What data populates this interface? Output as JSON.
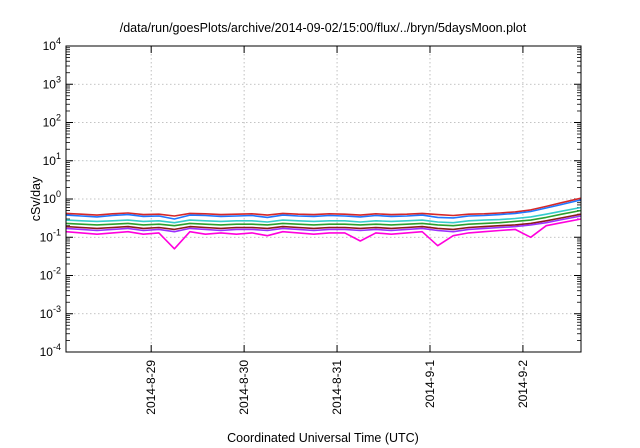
{
  "chart_data": {
    "type": "line",
    "title": "/data/run/goesPlots/archive/2014-09-02/15:00/flux/../bryn/5daysMoon.plot",
    "xlabel": "Coordinated Universal Time (UTC)",
    "ylabel": "cSv/day",
    "yscale": "log",
    "ylim": [
      0.0001,
      10000
    ],
    "xlim": [
      "2014-08-28 02:00",
      "2014-09-02 15:00"
    ],
    "grid": true,
    "y_ticks": [
      {
        "base": "10",
        "exp": "-4",
        "value": 0.0001
      },
      {
        "base": "10",
        "exp": "-3",
        "value": 0.001
      },
      {
        "base": "10",
        "exp": "-2",
        "value": 0.01
      },
      {
        "base": "10",
        "exp": "-1",
        "value": 0.1
      },
      {
        "base": "10",
        "exp": "0",
        "value": 1
      },
      {
        "base": "10",
        "exp": "1",
        "value": 10
      },
      {
        "base": "10",
        "exp": "2",
        "value": 100
      },
      {
        "base": "10",
        "exp": "3",
        "value": 1000
      },
      {
        "base": "10",
        "exp": "4",
        "value": 10000
      }
    ],
    "x_ticks": [
      {
        "label": "2014-8-29",
        "value": "2014-08-29 00:00"
      },
      {
        "label": "2014-8-30",
        "value": "2014-08-30 00:00"
      },
      {
        "label": "2014-8-31",
        "value": "2014-08-31 00:00"
      },
      {
        "label": "2014-9-1",
        "value": "2014-09-01 00:00"
      },
      {
        "label": "2014-9-2",
        "value": "2014-09-02 00:00"
      }
    ],
    "x": [
      "2014-08-28 02:00",
      "2014-08-28 06:00",
      "2014-08-28 10:00",
      "2014-08-28 14:00",
      "2014-08-28 18:00",
      "2014-08-28 22:00",
      "2014-08-29 02:00",
      "2014-08-29 06:00",
      "2014-08-29 10:00",
      "2014-08-29 14:00",
      "2014-08-29 18:00",
      "2014-08-29 22:00",
      "2014-08-30 02:00",
      "2014-08-30 06:00",
      "2014-08-30 10:00",
      "2014-08-30 14:00",
      "2014-08-30 18:00",
      "2014-08-30 22:00",
      "2014-08-31 02:00",
      "2014-08-31 06:00",
      "2014-08-31 10:00",
      "2014-08-31 14:00",
      "2014-08-31 18:00",
      "2014-08-31 22:00",
      "2014-09-01 02:00",
      "2014-09-01 06:00",
      "2014-09-01 10:00",
      "2014-09-01 14:00",
      "2014-09-01 18:00",
      "2014-09-01 22:00",
      "2014-09-02 02:00",
      "2014-09-02 06:00",
      "2014-09-02 10:00",
      "2014-09-02 15:00"
    ],
    "series": [
      {
        "color": "#d62728",
        "values": [
          0.42,
          0.4,
          0.38,
          0.41,
          0.43,
          0.39,
          0.4,
          0.36,
          0.42,
          0.41,
          0.39,
          0.4,
          0.41,
          0.38,
          0.42,
          0.4,
          0.39,
          0.41,
          0.4,
          0.38,
          0.41,
          0.39,
          0.4,
          0.42,
          0.39,
          0.37,
          0.4,
          0.41,
          0.43,
          0.46,
          0.52,
          0.64,
          0.8,
          1.05
        ]
      },
      {
        "color": "#1f77ff",
        "values": [
          0.38,
          0.36,
          0.34,
          0.37,
          0.39,
          0.35,
          0.36,
          0.3,
          0.38,
          0.37,
          0.35,
          0.36,
          0.37,
          0.33,
          0.38,
          0.36,
          0.35,
          0.37,
          0.36,
          0.34,
          0.37,
          0.35,
          0.36,
          0.38,
          0.33,
          0.32,
          0.36,
          0.37,
          0.39,
          0.42,
          0.47,
          0.58,
          0.72,
          0.95
        ]
      },
      {
        "color": "#33cccc",
        "values": [
          0.28,
          0.27,
          0.26,
          0.27,
          0.28,
          0.26,
          0.27,
          0.24,
          0.28,
          0.27,
          0.26,
          0.27,
          0.27,
          0.25,
          0.28,
          0.27,
          0.26,
          0.27,
          0.27,
          0.25,
          0.27,
          0.26,
          0.27,
          0.28,
          0.25,
          0.24,
          0.27,
          0.28,
          0.29,
          0.31,
          0.34,
          0.4,
          0.48,
          0.6
        ]
      },
      {
        "color": "#2ca02c",
        "values": [
          0.23,
          0.22,
          0.21,
          0.22,
          0.23,
          0.21,
          0.22,
          0.2,
          0.23,
          0.22,
          0.21,
          0.22,
          0.22,
          0.21,
          0.23,
          0.22,
          0.21,
          0.22,
          0.22,
          0.21,
          0.22,
          0.21,
          0.22,
          0.23,
          0.21,
          0.2,
          0.22,
          0.23,
          0.24,
          0.26,
          0.28,
          0.33,
          0.4,
          0.5
        ]
      },
      {
        "color": "#8b1a1a",
        "values": [
          0.19,
          0.18,
          0.17,
          0.18,
          0.19,
          0.17,
          0.18,
          0.16,
          0.19,
          0.18,
          0.17,
          0.18,
          0.18,
          0.17,
          0.19,
          0.18,
          0.17,
          0.18,
          0.18,
          0.17,
          0.18,
          0.17,
          0.18,
          0.19,
          0.17,
          0.16,
          0.18,
          0.19,
          0.2,
          0.21,
          0.23,
          0.27,
          0.32,
          0.4
        ]
      },
      {
        "color": "#9b30ff",
        "values": [
          0.17,
          0.16,
          0.15,
          0.16,
          0.17,
          0.15,
          0.16,
          0.14,
          0.17,
          0.16,
          0.15,
          0.16,
          0.16,
          0.15,
          0.17,
          0.16,
          0.15,
          0.16,
          0.16,
          0.15,
          0.16,
          0.15,
          0.16,
          0.17,
          0.15,
          0.14,
          0.16,
          0.17,
          0.18,
          0.19,
          0.21,
          0.24,
          0.29,
          0.36
        ]
      },
      {
        "color": "#ff00dd",
        "values": [
          0.14,
          0.13,
          0.12,
          0.13,
          0.14,
          0.12,
          0.13,
          0.05,
          0.14,
          0.12,
          0.13,
          0.12,
          0.13,
          0.11,
          0.14,
          0.13,
          0.12,
          0.13,
          0.13,
          0.08,
          0.13,
          0.12,
          0.13,
          0.14,
          0.06,
          0.11,
          0.13,
          0.14,
          0.15,
          0.16,
          0.1,
          0.2,
          0.24,
          0.3
        ]
      }
    ]
  }
}
